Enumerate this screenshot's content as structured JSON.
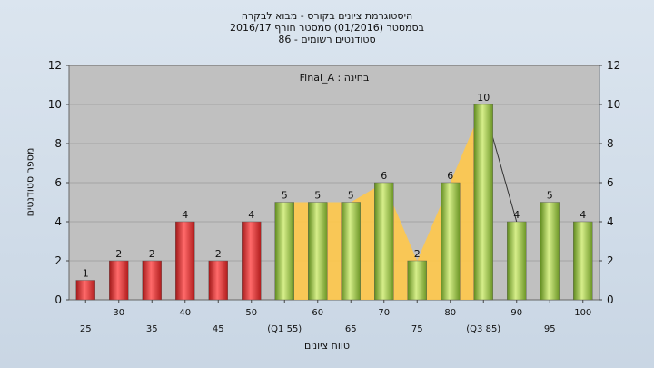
{
  "chart_data": {
    "type": "bar",
    "title_lines": [
      "היסטוגרמת ציונים בקורס - מבוא לבקרה",
      "בסמסטר  (01/2016)  סמסטר חורף 2016/17",
      "סטודנטים רשומים - 86"
    ],
    "annotation": "בחינה : Final_A",
    "ylabel": "מספר סטודנטים",
    "xlabel": "טווח ציונים",
    "ylim": [
      0,
      12
    ],
    "yticks": [
      0,
      2,
      4,
      6,
      8,
      10,
      12
    ],
    "grid": true,
    "bars": [
      {
        "grade": 25,
        "label": "25",
        "value": 1,
        "color": "red"
      },
      {
        "grade": 30,
        "label": "30",
        "value": 2,
        "color": "red"
      },
      {
        "grade": 35,
        "label": "35",
        "value": 2,
        "color": "red"
      },
      {
        "grade": 40,
        "label": "40",
        "value": 4,
        "color": "red"
      },
      {
        "grade": 45,
        "label": "45",
        "value": 2,
        "color": "red"
      },
      {
        "grade": 50,
        "label": "50",
        "value": 4,
        "color": "red"
      },
      {
        "grade": 55,
        "label": "(Q1 55)",
        "value": 5,
        "color": "green"
      },
      {
        "grade": 60,
        "label": "60",
        "value": 5,
        "color": "green"
      },
      {
        "grade": 65,
        "label": "65",
        "value": 5,
        "color": "green"
      },
      {
        "grade": 70,
        "label": "70",
        "value": 6,
        "color": "green"
      },
      {
        "grade": 75,
        "label": "75",
        "value": 2,
        "color": "green"
      },
      {
        "grade": 80,
        "label": "80",
        "value": 6,
        "color": "green"
      },
      {
        "grade": 85,
        "label": "(Q3 85)",
        "value": 10,
        "color": "green"
      },
      {
        "grade": 90,
        "label": "90",
        "value": 4,
        "color": "green"
      },
      {
        "grade": 95,
        "label": "95",
        "value": 5,
        "color": "green"
      },
      {
        "grade": 100,
        "label": "100",
        "value": 4,
        "color": "green"
      }
    ],
    "area_fill_color": "#ffc84a",
    "colors": {
      "plot_bg": "#c0c0c0",
      "red_bar": "#e03030",
      "green_bar": "#98c03a"
    }
  }
}
